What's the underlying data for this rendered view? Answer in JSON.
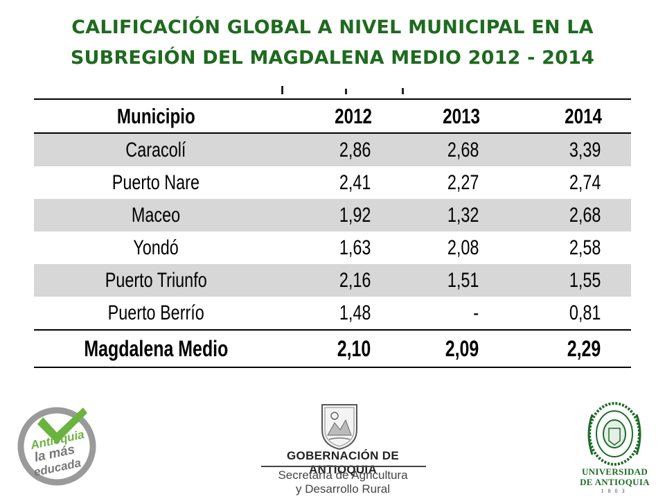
{
  "title": {
    "line1": "CALIFICACIÓN GLOBAL A NIVEL MUNICIPAL EN LA",
    "line2": "SUBREGIÓN DEL MAGDALENA MEDIO 2012 - 2014"
  },
  "table": {
    "headers": [
      "Municipio",
      "2012",
      "2013",
      "2014"
    ],
    "rows": [
      {
        "municipio": "Caracolí",
        "y2012": "2,86",
        "y2013": "2,68",
        "y2014": "3,39"
      },
      {
        "municipio": "Puerto Nare",
        "y2012": "2,41",
        "y2013": "2,27",
        "y2014": "2,74"
      },
      {
        "municipio": "Maceo",
        "y2012": "1,92",
        "y2013": "1,32",
        "y2014": "2,68"
      },
      {
        "municipio": "Yondó",
        "y2012": "1,63",
        "y2013": "2,08",
        "y2014": "2,58"
      },
      {
        "municipio": "Puerto Triunfo",
        "y2012": "2,16",
        "y2013": "1,51",
        "y2014": "1,55"
      },
      {
        "municipio": "Puerto Berrío",
        "y2012": "1,48",
        "y2013": "-",
        "y2014": "0,81"
      }
    ],
    "total": {
      "municipio": "Magdalena Medio",
      "y2012": "2,10",
      "y2013": "2,09",
      "y2014": "2,29"
    }
  },
  "logos": {
    "left": {
      "line1": "Antioquia",
      "line2": "la más",
      "line3": "educada",
      "accent": "#6bb33f",
      "ring": "#9a9a9a"
    },
    "center": {
      "line1": "GOBERNACIÓN DE ANTIOQUIA",
      "line2": "Secretaría de Agricultura",
      "line3": "y Desarrollo Rural"
    },
    "right": {
      "line1": "UNIVERSIDAD",
      "line2": "DE ANTIOQUIA",
      "line3": "1803",
      "color": "#1f6b2a"
    }
  },
  "colors": {
    "title": "#1e6a1e",
    "row_shade": "#d7d7d7"
  }
}
